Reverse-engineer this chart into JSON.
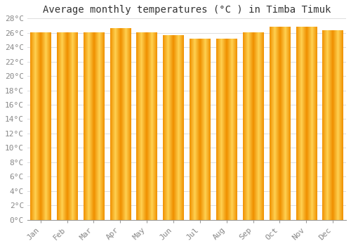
{
  "title": "Average monthly temperatures (°C ) in Timba Timuk",
  "months": [
    "Jan",
    "Feb",
    "Mar",
    "Apr",
    "May",
    "Jun",
    "Jul",
    "Aug",
    "Sep",
    "Oct",
    "Nov",
    "Dec"
  ],
  "values": [
    26.1,
    26.1,
    26.1,
    26.6,
    26.1,
    25.7,
    25.2,
    25.2,
    26.1,
    26.8,
    26.8,
    26.4
  ],
  "bar_color_center": "#FFD050",
  "bar_color_edge": "#F09000",
  "background_color": "#FFFFFF",
  "grid_color": "#DDDDDD",
  "ylim": [
    0,
    28
  ],
  "yticks": [
    0,
    2,
    4,
    6,
    8,
    10,
    12,
    14,
    16,
    18,
    20,
    22,
    24,
    26,
    28
  ],
  "ytick_labels": [
    "0°C",
    "2°C",
    "4°C",
    "6°C",
    "8°C",
    "10°C",
    "12°C",
    "14°C",
    "16°C",
    "18°C",
    "20°C",
    "22°C",
    "24°C",
    "26°C",
    "28°C"
  ],
  "title_fontsize": 10,
  "tick_fontsize": 8,
  "font_family": "monospace"
}
